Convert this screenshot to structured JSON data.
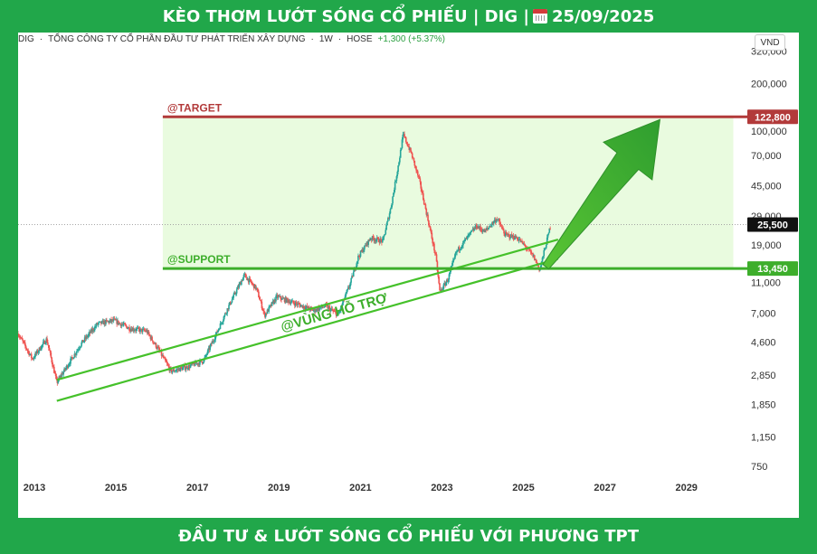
{
  "header": {
    "title_left": "KÈO THƠM LƯỚT SÓNG CỔ PHIẾU | DIG |",
    "date": "25/09/2025"
  },
  "footer": {
    "text": "ĐẦU TƯ & LƯỚT SÓNG CỔ PHIẾU VỚI PHƯƠNG TPT"
  },
  "legend": {
    "symbol": "DIG",
    "company": "TỔNG CÔNG TY CỔ PHẦN ĐẦU TƯ PHÁT TRIỂN XÂY DỰNG",
    "interval": "1W",
    "exchange": "HOSE",
    "change": "+1,300 (+5.37%)"
  },
  "currency": "VND",
  "icons": [
    "calendar-icon"
  ],
  "colors": {
    "brand_green": "#21a74a",
    "target_red": "#b23a3a",
    "support_green": "#3dae2b",
    "zone_fill": "#e9fbdf",
    "candle_up": "#26a69a",
    "candle_down": "#ef5350",
    "arrow_green": "#3aad2f"
  },
  "chart_data": {
    "type": "candlestick",
    "scale": "log",
    "ylim": [
      600,
      420000
    ],
    "xlim": [
      2012.65,
      2030.3
    ],
    "x_ticks": [
      "2013",
      "2015",
      "2017",
      "2019",
      "2021",
      "2023",
      "2025",
      "2027",
      "2029"
    ],
    "y_ticks": [
      320000,
      200000,
      100000,
      70000,
      45000,
      29000,
      19000,
      11000,
      7000,
      4600,
      2850,
      1850,
      1150,
      750
    ],
    "y_tick_labels": [
      "320,000",
      "200,000",
      "100,000",
      "70,000",
      "45,000",
      "29,000",
      "19,000",
      "11,000",
      "7,000",
      "4,600",
      "2,850",
      "1,850",
      "1,150",
      "750"
    ],
    "last_price": 25500,
    "last_price_label": "25,500",
    "target": {
      "label": "@TARGET",
      "value": 122800,
      "value_label": "122,800"
    },
    "support": {
      "label": "@SUPPORT",
      "value": 13450,
      "value_label": "13,450"
    },
    "zone_x_range": [
      2016.2,
      2030.2
    ],
    "channel_label": "@VÙNG HỖ TRỢ",
    "channel_upper": [
      [
        2013.6,
        2650
      ],
      [
        2025.9,
        20500
      ]
    ],
    "channel_lower": [
      [
        2013.6,
        1950
      ],
      [
        2025.9,
        15500
      ]
    ],
    "arrow": {
      "from": [
        2025.6,
        13800
      ],
      "to": [
        2028.4,
        118000
      ]
    },
    "price_path": [
      [
        2012.65,
        5200
      ],
      [
        2013.0,
        3600
      ],
      [
        2013.35,
        4800
      ],
      [
        2013.6,
        2550
      ],
      [
        2014.2,
        4500
      ],
      [
        2014.6,
        6000
      ],
      [
        2015.0,
        6300
      ],
      [
        2015.4,
        5600
      ],
      [
        2015.8,
        5400
      ],
      [
        2016.1,
        4100
      ],
      [
        2016.4,
        3000
      ],
      [
        2016.8,
        3200
      ],
      [
        2017.2,
        3500
      ],
      [
        2017.5,
        5100
      ],
      [
        2017.8,
        7600
      ],
      [
        2018.2,
        12200
      ],
      [
        2018.5,
        10000
      ],
      [
        2018.7,
        6800
      ],
      [
        2019.0,
        8900
      ],
      [
        2019.5,
        8000
      ],
      [
        2019.9,
        7300
      ],
      [
        2020.2,
        7800
      ],
      [
        2020.5,
        6800
      ],
      [
        2020.8,
        10800
      ],
      [
        2021.0,
        16000
      ],
      [
        2021.3,
        21000
      ],
      [
        2021.6,
        20000
      ],
      [
        2021.8,
        33000
      ],
      [
        2022.0,
        65000
      ],
      [
        2022.1,
        95000
      ],
      [
        2022.3,
        72000
      ],
      [
        2022.5,
        48000
      ],
      [
        2022.7,
        28000
      ],
      [
        2022.9,
        16000
      ],
      [
        2023.0,
        9500
      ],
      [
        2023.2,
        11500
      ],
      [
        2023.4,
        17000
      ],
      [
        2023.6,
        20000
      ],
      [
        2023.9,
        25000
      ],
      [
        2024.1,
        23000
      ],
      [
        2024.4,
        28000
      ],
      [
        2024.6,
        22000
      ],
      [
        2024.9,
        21000
      ],
      [
        2025.1,
        18500
      ],
      [
        2025.3,
        16000
      ],
      [
        2025.45,
        13200
      ],
      [
        2025.6,
        19000
      ],
      [
        2025.72,
        25500
      ]
    ]
  }
}
